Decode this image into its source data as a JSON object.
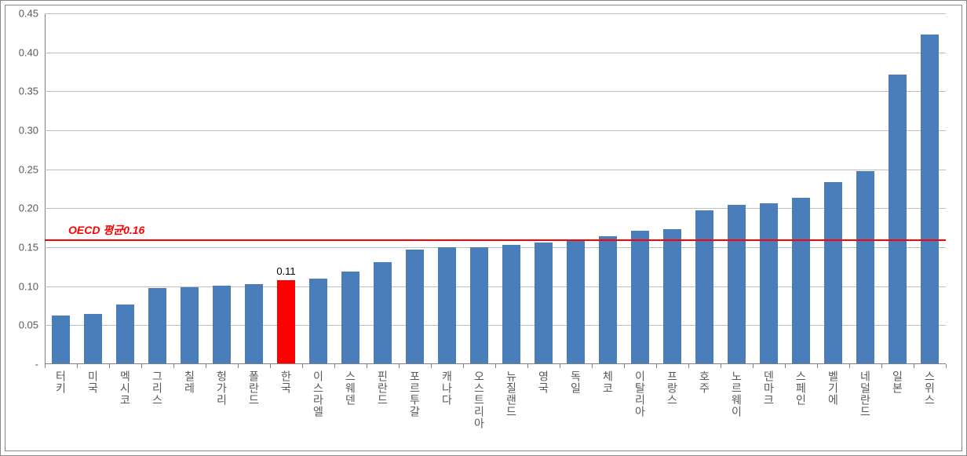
{
  "chart": {
    "type": "bar",
    "ylim": [
      0,
      0.45
    ],
    "ytick_step": 0.05,
    "ytick_labels": [
      "-",
      "0.05",
      "0.10",
      "0.15",
      "0.20",
      "0.25",
      "0.30",
      "0.35",
      "0.40",
      "0.45"
    ],
    "categories": [
      "터키",
      "미국",
      "멕시코",
      "그리스",
      "칠레",
      "헝가리",
      "폴란드",
      "한국",
      "이스라엘",
      "스웨덴",
      "핀란드",
      "포르투갈",
      "캐나다",
      "오스트리아",
      "뉴질랜드",
      "영국",
      "독일",
      "체코",
      "이탈리아",
      "프랑스",
      "호주",
      "노르웨이",
      "덴마크",
      "스페인",
      "벨기에",
      "네덜란드",
      "일본",
      "스위스"
    ],
    "values": [
      0.062,
      0.064,
      0.077,
      0.098,
      0.099,
      0.101,
      0.103,
      0.108,
      0.11,
      0.119,
      0.131,
      0.147,
      0.15,
      0.15,
      0.153,
      0.156,
      0.16,
      0.164,
      0.171,
      0.173,
      0.197,
      0.204,
      0.206,
      0.213,
      0.234,
      0.248,
      0.371,
      0.423
    ],
    "highlight_index": 7,
    "highlight_label": "0.11",
    "bar_color": "#4a7ebb",
    "highlight_color": "#ff0000",
    "grid_color": "#bfbfbf",
    "axis_color": "#808080",
    "label_color": "#595959",
    "background_color": "#ffffff",
    "bar_width_ratio": 0.55,
    "reference_line": {
      "value": 0.16,
      "label": "OECD 평균0.16",
      "color": "#ff0000"
    },
    "label_fontsize": 13,
    "xlabel_fontsize": 14
  }
}
